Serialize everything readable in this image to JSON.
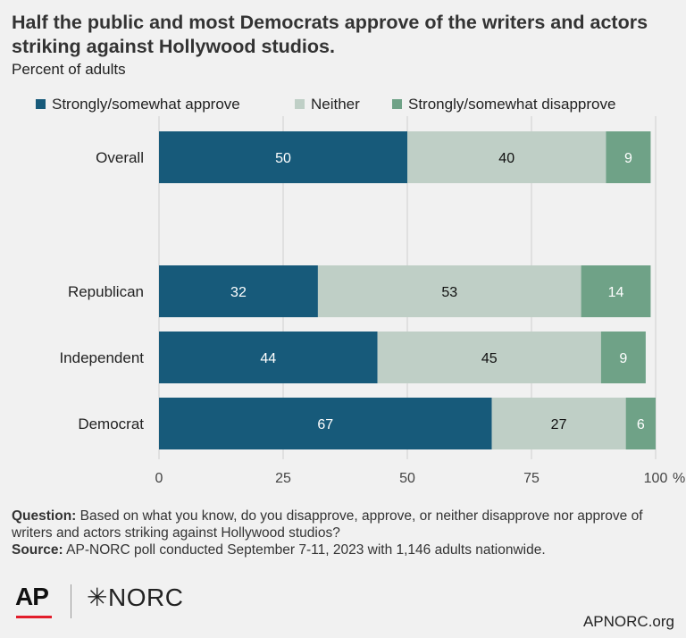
{
  "title": "Half the public and most Democrats approve of the writers and actors striking against Hollywood studios.",
  "subtitle": "Percent of adults",
  "colors": {
    "approve": "#175a7a",
    "neither": "#bfcfc6",
    "disapprove": "#6fa287",
    "grid": "#cfcfcf"
  },
  "legend": [
    {
      "name": "Strongly/somewhat approve",
      "color": "#175a7a"
    },
    {
      "name": "Neither",
      "color": "#bfcfc6"
    },
    {
      "name": "Strongly/somewhat disapprove",
      "color": "#6fa287"
    }
  ],
  "chart_data": {
    "type": "bar",
    "orientation": "horizontal",
    "stacked": true,
    "categories": [
      "Overall",
      "Republican",
      "Independent",
      "Democrat"
    ],
    "series": [
      {
        "name": "Strongly/somewhat approve",
        "values": [
          50,
          32,
          44,
          67
        ]
      },
      {
        "name": "Neither",
        "values": [
          40,
          53,
          45,
          27
        ]
      },
      {
        "name": "Strongly/somewhat disapprove",
        "values": [
          9,
          14,
          9,
          6
        ]
      }
    ],
    "xlim": [
      0,
      100
    ],
    "xticks": [
      "0",
      "25",
      "50",
      "75",
      "100"
    ],
    "xunit": "%",
    "grid": true,
    "legend_position": "top"
  },
  "footer": {
    "question_label": "Question:",
    "question_text": "Based on what you know, do you disapprove, approve, or neither disapprove nor approve of writers and actors striking against Hollywood studios?",
    "source_label": "Source:",
    "source_text": "AP-NORC poll conducted September 7-11, 2023 with 1,146 adults nationwide."
  },
  "logos": {
    "ap": "AP",
    "norc": "NORC"
  },
  "url": "APNORC.org"
}
